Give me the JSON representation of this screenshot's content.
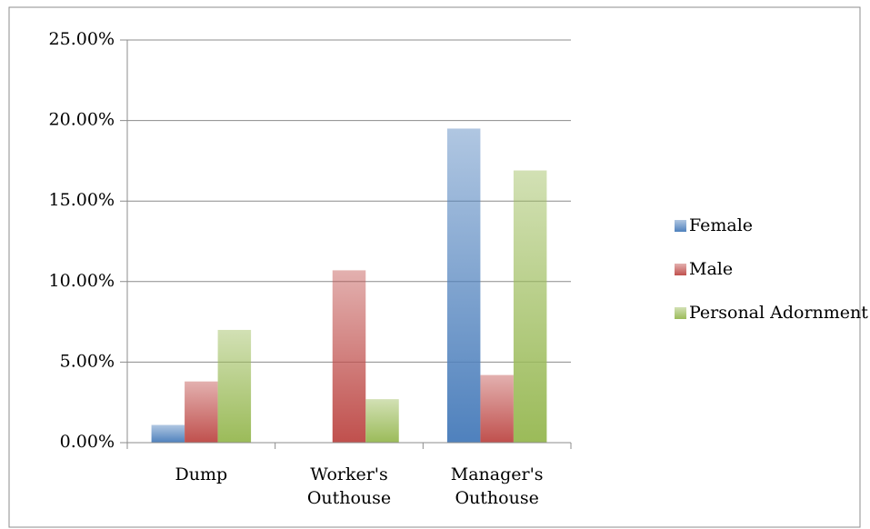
{
  "chart_data": {
    "type": "bar",
    "categories": [
      "Dump",
      "Worker's Outhouse",
      "Manager's Outhouse"
    ],
    "series": [
      {
        "name": "Female",
        "color": "#4f81bd",
        "values": [
          1.1,
          0,
          19.5
        ]
      },
      {
        "name": "Male",
        "color": "#c0504d",
        "values": [
          3.8,
          10.7,
          4.2
        ]
      },
      {
        "name": "Personal Adornment",
        "color": "#9bbb59",
        "values": [
          7.0,
          2.7,
          16.9
        ]
      }
    ],
    "ylim": [
      0,
      25
    ],
    "yticks": [
      {
        "value": 0,
        "label": "0.00%"
      },
      {
        "value": 5,
        "label": "5.00%"
      },
      {
        "value": 10,
        "label": "10.00%"
      },
      {
        "value": 15,
        "label": "15.00%"
      },
      {
        "value": 20,
        "label": "20.00%"
      },
      {
        "value": 25,
        "label": "25.00%"
      }
    ],
    "grid": true,
    "legend": "right"
  }
}
